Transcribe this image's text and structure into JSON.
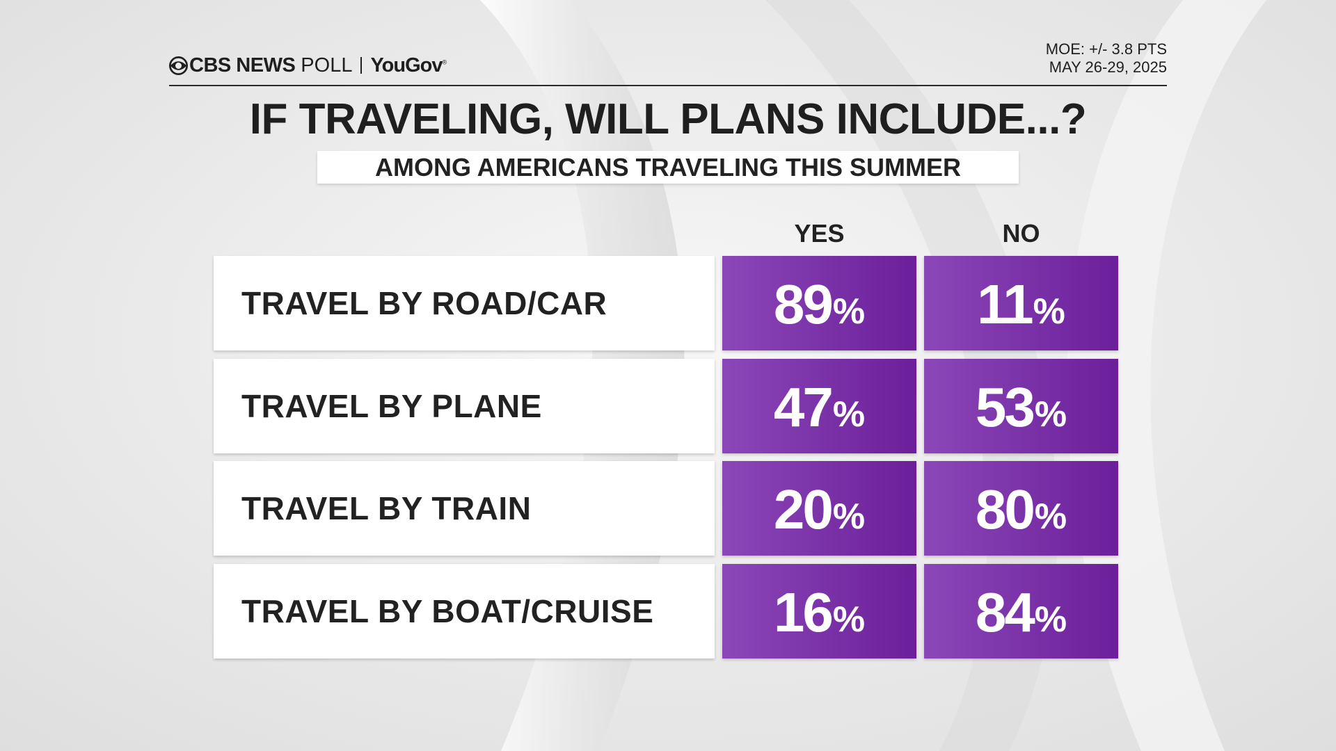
{
  "header": {
    "brand_cbs": "CBS NEWS",
    "brand_poll": "POLL",
    "brand_partner": "YouGov",
    "moe": "MOE: +/- 3.8 PTS",
    "dates": "MAY 26-29, 2025"
  },
  "chart_data": {
    "type": "table",
    "title": "IF TRAVELING, WILL PLANS INCLUDE...?",
    "subtitle": "AMONG AMERICANS TRAVELING THIS SUMMER",
    "columns": [
      "YES",
      "NO"
    ],
    "unit": "%",
    "rows": [
      {
        "label": "TRAVEL BY ROAD/CAR",
        "yes": 89,
        "no": 11
      },
      {
        "label": "TRAVEL BY PLANE",
        "yes": 47,
        "no": 53
      },
      {
        "label": "TRAVEL BY TRAIN",
        "yes": 20,
        "no": 80
      },
      {
        "label": "TRAVEL BY BOAT/CRUISE",
        "yes": 16,
        "no": 84
      }
    ]
  },
  "colors": {
    "cell_fill_light": "#8b47b8",
    "cell_fill_dark": "#6c1f9a",
    "text_dark": "#1f1f1f",
    "background": "#ececec"
  }
}
